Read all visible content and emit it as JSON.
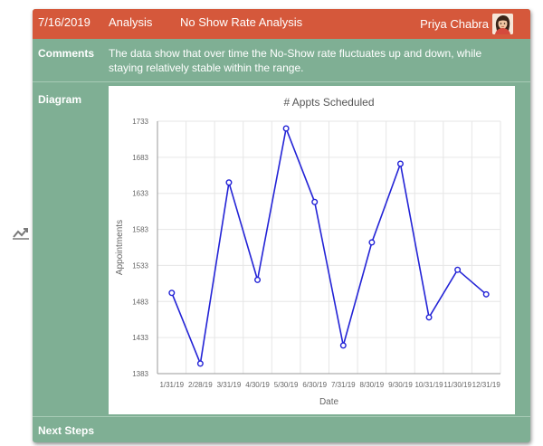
{
  "header": {
    "date": "7/16/2019",
    "category": "Analysis",
    "title": "No Show Rate Analysis",
    "user": "Priya Chabra"
  },
  "comments": {
    "label": "Comments",
    "text": "The data show that over time the No-Show rate fluctuates up and down, while staying relatively stable within the range."
  },
  "diagram": {
    "label": "Diagram"
  },
  "next_steps": {
    "label": "Next Steps"
  },
  "icons": {
    "side": "trending-chart-icon",
    "avatar": "user-avatar-icon"
  },
  "colors": {
    "header": "#d5583b",
    "panel": "#7faf94",
    "line": "#2323d6"
  },
  "chart_data": {
    "type": "line",
    "title": "# Appts Scheduled",
    "xlabel": "Date",
    "ylabel": "Appointments",
    "categories": [
      "1/31/19",
      "2/28/19",
      "3/31/19",
      "4/30/19",
      "5/30/19",
      "6/30/19",
      "7/31/19",
      "8/30/19",
      "9/30/19",
      "10/31/19",
      "11/30/19",
      "12/31/19"
    ],
    "series": [
      {
        "values": [
          1495,
          1397,
          1648,
          1513,
          1723,
          1621,
          1422,
          1565,
          1674,
          1461,
          1527,
          1493
        ]
      }
    ],
    "yticks": [
      1383,
      1433,
      1483,
      1533,
      1583,
      1633,
      1683,
      1733
    ],
    "ylim": [
      1383,
      1733
    ],
    "grid": true
  }
}
